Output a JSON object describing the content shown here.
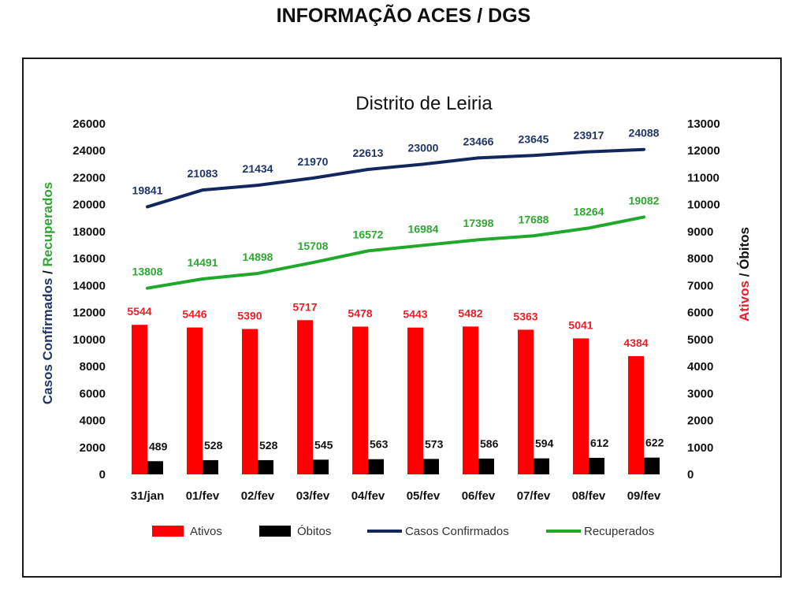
{
  "header": {
    "title": "INFORMAÇÃO ACES / DGS"
  },
  "chart_data": {
    "type": "bar",
    "title": "Distrito de Leiria",
    "categories": [
      "31/jan",
      "01/fev",
      "02/fev",
      "03/fev",
      "04/fev",
      "05/fev",
      "06/fev",
      "07/fev",
      "08/fev",
      "09/fev"
    ],
    "series": [
      {
        "name": "Ativos",
        "type": "bar",
        "axis": "right",
        "color": "#ff0000",
        "label_color": "#e8202a",
        "values": [
          5544,
          5446,
          5390,
          5717,
          5478,
          5443,
          5482,
          5363,
          5041,
          4384
        ]
      },
      {
        "name": "Óbitos",
        "type": "bar",
        "axis": "right",
        "color": "#000000",
        "label_color": "#111111",
        "values": [
          489,
          528,
          528,
          545,
          563,
          573,
          586,
          594,
          612,
          622
        ]
      },
      {
        "name": "Casos Confirmados",
        "type": "line",
        "axis": "left",
        "color": "#13265e",
        "label_color": "#1f3566",
        "values": [
          19841,
          21083,
          21434,
          21970,
          22613,
          23000,
          23466,
          23645,
          23917,
          24088
        ]
      },
      {
        "name": "Recuperados",
        "type": "line",
        "axis": "left",
        "color": "#1fa82a",
        "label_color": "#2ea832",
        "values": [
          13808,
          14491,
          14898,
          15708,
          16572,
          16984,
          17398,
          17688,
          18264,
          19082
        ]
      }
    ],
    "y_left": {
      "label_part1": "Casos Confirmados",
      "label_sep": " / ",
      "label_part2": "Recuperados",
      "label_part1_color": "#1f3566",
      "label_part2_color": "#2ea832",
      "ylim": [
        0,
        26000
      ],
      "ticks": [
        0,
        2000,
        4000,
        6000,
        8000,
        10000,
        12000,
        14000,
        16000,
        18000,
        20000,
        22000,
        24000,
        26000
      ]
    },
    "y_right": {
      "label_part1": "Ativos",
      "label_sep": " / ",
      "label_part2": "Óbitos",
      "label_part1_color": "#e8202a",
      "label_part2_color": "#111111",
      "ylim": [
        0,
        13000
      ],
      "ticks": [
        0,
        1000,
        2000,
        3000,
        4000,
        5000,
        6000,
        7000,
        8000,
        9000,
        10000,
        11000,
        12000,
        13000
      ]
    },
    "grid": false,
    "legend_position": "bottom"
  }
}
